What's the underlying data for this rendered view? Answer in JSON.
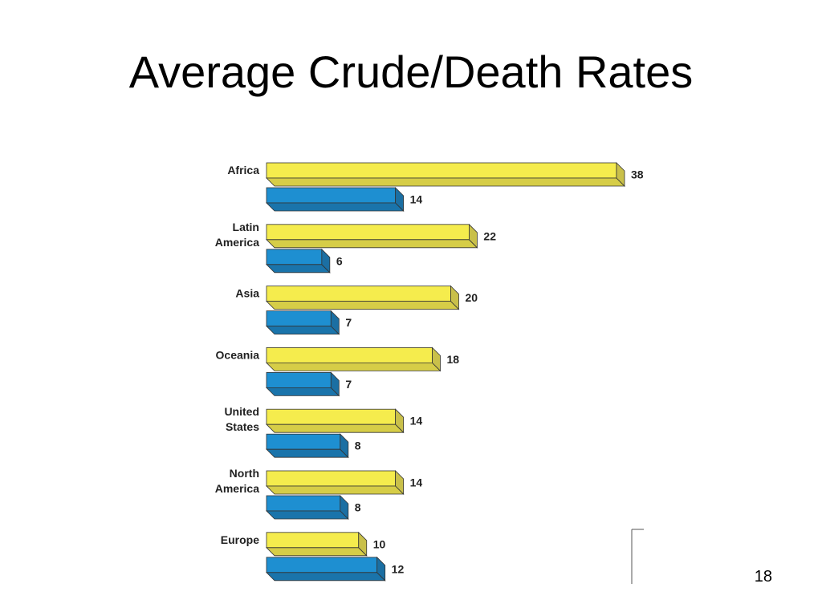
{
  "slide": {
    "title": "Average Crude/Death Rates",
    "page_number": "18"
  },
  "chart_data": {
    "type": "bar",
    "orientation": "horizontal",
    "style": "3d",
    "title": "",
    "xlabel": "",
    "ylabel": "",
    "xlim": [
      0,
      40
    ],
    "grid": false,
    "legend": "none",
    "categories": [
      [
        "Africa"
      ],
      [
        "Latin",
        "America"
      ],
      [
        "Asia"
      ],
      [
        "Oceania"
      ],
      [
        "United",
        "States"
      ],
      [
        "North",
        "America"
      ],
      [
        "Europe"
      ]
    ],
    "series": [
      {
        "values": [
          38,
          22,
          20,
          18,
          14,
          14,
          10
        ],
        "color": "#f5ec4d",
        "side": "#c9c04a",
        "bottom": "#d6cd47"
      },
      {
        "values": [
          14,
          6,
          7,
          7,
          8,
          8,
          12
        ],
        "color": "#1e8fd1",
        "side": "#1b6fa3",
        "bottom": "#1a74ab"
      }
    ]
  }
}
